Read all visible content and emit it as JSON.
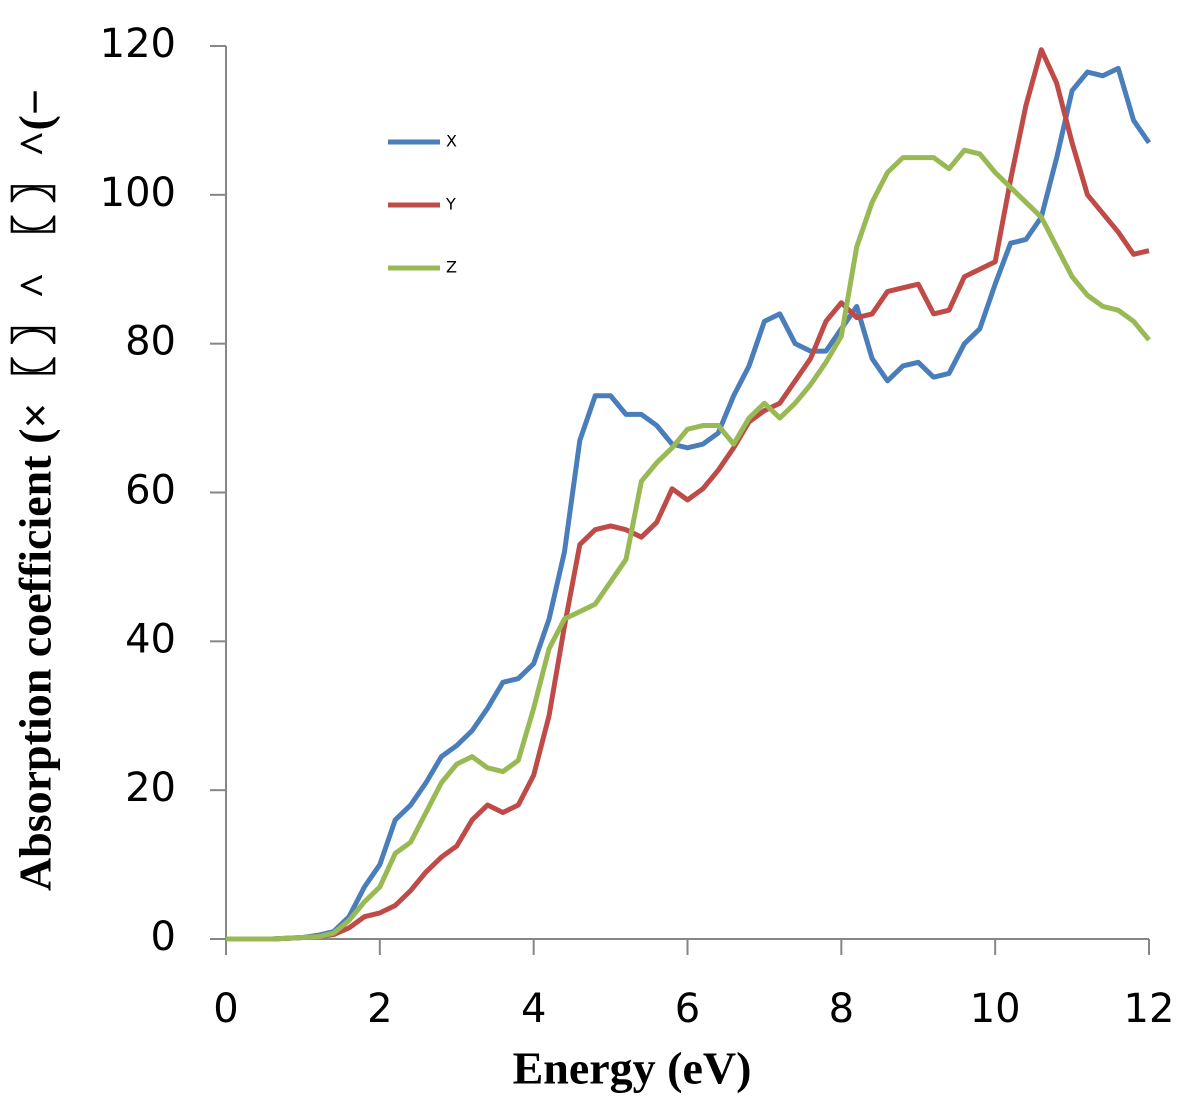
{
  "chart_data": {
    "type": "line",
    "x_label": "Energy (eV)",
    "y_label": "Absorption coefficient (×〖 〗^ 〖 〗^(−",
    "x": [
      0,
      0.2,
      0.4,
      0.6,
      0.8,
      1.0,
      1.2,
      1.4,
      1.6,
      1.8,
      2.0,
      2.2,
      2.4,
      2.6,
      2.8,
      3.0,
      3.2,
      3.4,
      3.6,
      3.8,
      4.0,
      4.2,
      4.4,
      4.6,
      4.8,
      5.0,
      5.2,
      5.4,
      5.6,
      5.8,
      6.0,
      6.2,
      6.4,
      6.6,
      6.8,
      7.0,
      7.2,
      7.4,
      7.6,
      7.8,
      8.0,
      8.2,
      8.4,
      8.6,
      8.8,
      9.0,
      9.2,
      9.4,
      9.6,
      9.8,
      10.0,
      10.2,
      10.4,
      10.6,
      10.8,
      11.0,
      11.2,
      11.4,
      11.6,
      11.8,
      12.0
    ],
    "series": [
      {
        "name": "X",
        "color": "#4a7ebb",
        "values": [
          0,
          0,
          0,
          0,
          0.1,
          0.2,
          0.5,
          1,
          3,
          7,
          10,
          16,
          18,
          21,
          24.5,
          26,
          28,
          31,
          34.5,
          35,
          37,
          43,
          52,
          67,
          73,
          73,
          70.5,
          70.5,
          69,
          66.5,
          66,
          66.5,
          68,
          73,
          77,
          83,
          84,
          80,
          79,
          79,
          82,
          85,
          78,
          75,
          77,
          77.5,
          75.5,
          76,
          80,
          82,
          88,
          93.5,
          94,
          97,
          105,
          114,
          116.5,
          116,
          117,
          110,
          107
        ]
      },
      {
        "name": "Y",
        "color": "#be4b48",
        "values": [
          0,
          0,
          0,
          0,
          0.1,
          0.2,
          0.3,
          0.6,
          1.5,
          3,
          3.5,
          4.5,
          6.5,
          9,
          11,
          12.5,
          16,
          18,
          17,
          18,
          22,
          30,
          42,
          53,
          55,
          55.5,
          55,
          54,
          56,
          60.5,
          59,
          60.5,
          63,
          66,
          69.5,
          71,
          72,
          75,
          78,
          83,
          85.5,
          83.5,
          84,
          87,
          87.5,
          88,
          84,
          84.5,
          89,
          90,
          91,
          102,
          112,
          119.5,
          115,
          107,
          100,
          97.5,
          95,
          92,
          92.5
        ]
      },
      {
        "name": "Z",
        "color": "#98b954",
        "values": [
          0,
          0,
          0,
          0,
          0.1,
          0.2,
          0.3,
          0.8,
          2.5,
          5,
          7,
          11.5,
          13,
          17,
          21,
          23.5,
          24.5,
          23,
          22.5,
          24,
          31,
          39,
          43,
          44,
          45,
          48,
          51,
          61.5,
          64,
          66,
          68.5,
          69,
          69,
          66.5,
          70,
          72,
          70,
          72,
          74.5,
          77.5,
          81,
          93,
          99,
          103,
          105,
          105,
          105,
          103.5,
          106,
          105.5,
          103,
          101,
          99,
          97,
          93,
          89,
          86.5,
          85,
          84.5,
          83,
          80.5
        ]
      }
    ],
    "xlim": [
      0,
      12
    ],
    "xticks": [
      0,
      2,
      4,
      6,
      8,
      10,
      12
    ],
    "ylim": [
      0,
      120
    ],
    "yticks": [
      0,
      20,
      40,
      60,
      80,
      100,
      120
    ]
  }
}
